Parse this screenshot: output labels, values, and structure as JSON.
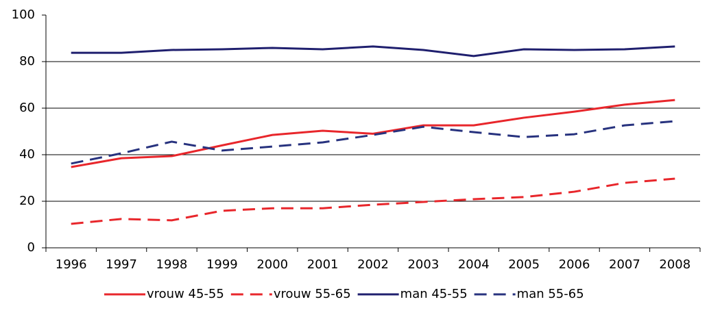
{
  "chart_data": {
    "type": "line",
    "categories": [
      "1996",
      "1997",
      "1998",
      "1999",
      "2000",
      "2001",
      "2002",
      "2003",
      "2004",
      "2005",
      "2006",
      "2007",
      "2008"
    ],
    "series": [
      {
        "name": "vrouw 45-55",
        "color": "#e8262b",
        "style": "solid",
        "values": [
          34.7,
          38.5,
          39.4,
          44,
          48.5,
          50.3,
          49,
          52.6,
          52.6,
          55.9,
          58.5,
          61.5,
          63.5
        ]
      },
      {
        "name": "vrouw 55-65",
        "color": "#e8262b",
        "style": "dashed",
        "values": [
          10.3,
          12.4,
          11.8,
          15.9,
          17,
          17,
          18.5,
          19.7,
          20.9,
          21.8,
          24.1,
          27.9,
          29.7
        ]
      },
      {
        "name": "man 45-55",
        "color": "#1f1f6e",
        "style": "solid",
        "values": [
          83.8,
          83.8,
          85,
          85.3,
          85.9,
          85.3,
          86.5,
          85,
          82.4,
          85.3,
          85,
          85.3,
          86.5
        ]
      },
      {
        "name": "man 55-65",
        "color": "#27327e",
        "style": "dashed",
        "values": [
          36.2,
          40.6,
          45.6,
          41.8,
          43.5,
          45.3,
          48.5,
          52,
          49.7,
          47.6,
          48.8,
          52.6,
          54.4
        ]
      }
    ],
    "ylim": [
      0,
      100
    ],
    "yticks": [
      0,
      20,
      40,
      60,
      80,
      100
    ],
    "grid": true,
    "legend": "bottom"
  }
}
